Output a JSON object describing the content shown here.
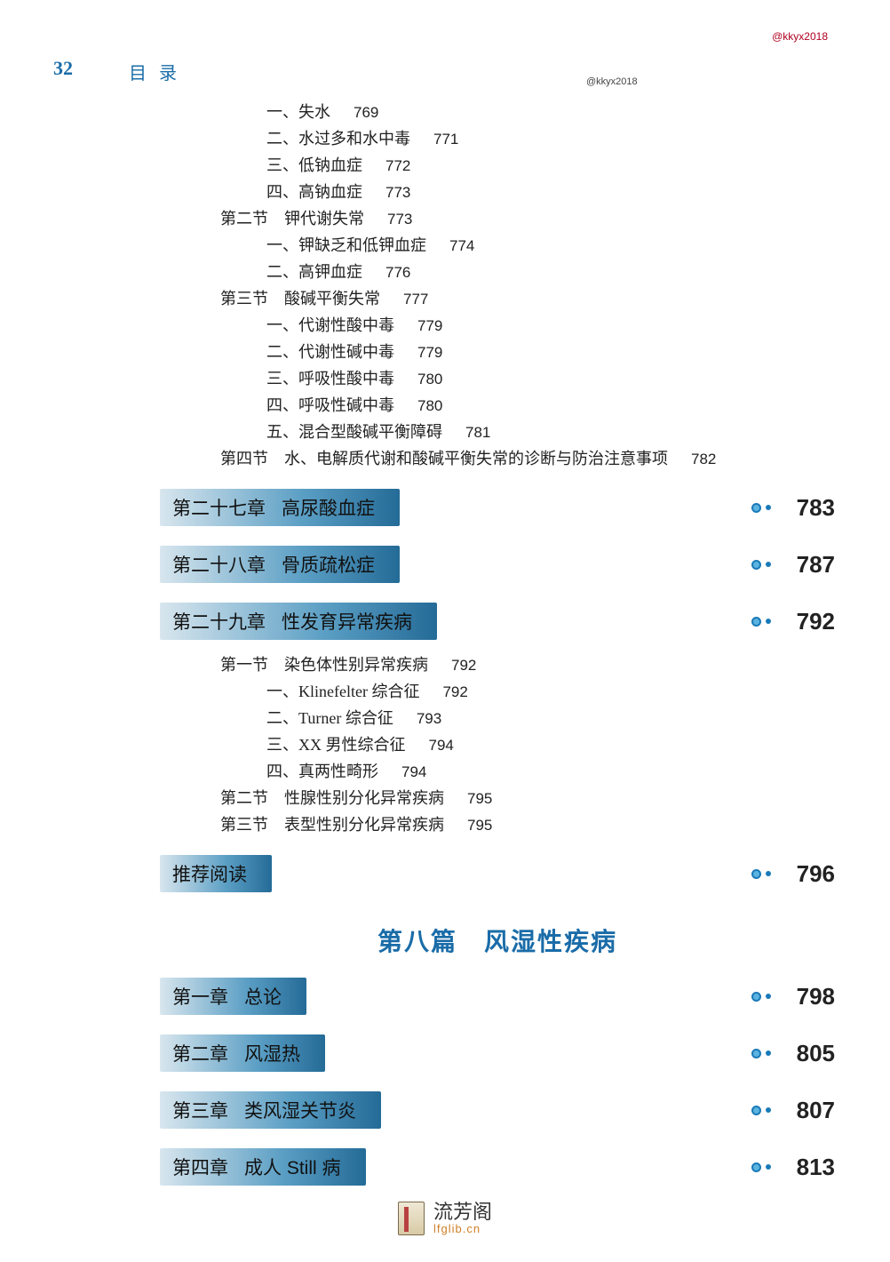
{
  "page_number": "32",
  "header": "目录",
  "watermark_small": "@kkyx2018",
  "watermark_red": "@kkyx2018",
  "footer": {
    "cn": "流芳阁",
    "en": "lfglib.cn"
  },
  "part_title": {
    "prefix": "第八篇",
    "name": "风湿性疾病"
  },
  "style": {
    "accent_color": "#1a6ca8",
    "bar_gradient_start": "#d8e6ee",
    "bar_gradient_mid": "#5a9ec4",
    "bar_gradient_end": "#246b97"
  },
  "lines_top": [
    {
      "type": "sub",
      "label": "一、失水",
      "page": "769"
    },
    {
      "type": "sub",
      "label": "二、水过多和水中毒",
      "page": "771"
    },
    {
      "type": "sub",
      "label": "三、低钠血症",
      "page": "772"
    },
    {
      "type": "sub",
      "label": "四、高钠血症",
      "page": "773"
    },
    {
      "type": "section",
      "sec": "第二节",
      "label": "钾代谢失常",
      "page": "773"
    },
    {
      "type": "sub",
      "label": "一、钾缺乏和低钾血症",
      "page": "774"
    },
    {
      "type": "sub",
      "label": "二、高钾血症",
      "page": "776"
    },
    {
      "type": "section",
      "sec": "第三节",
      "label": "酸碱平衡失常",
      "page": "777"
    },
    {
      "type": "sub",
      "label": "一、代谢性酸中毒",
      "page": "779"
    },
    {
      "type": "sub",
      "label": "二、代谢性碱中毒",
      "page": "779"
    },
    {
      "type": "sub",
      "label": "三、呼吸性酸中毒",
      "page": "780"
    },
    {
      "type": "sub",
      "label": "四、呼吸性碱中毒",
      "page": "780"
    },
    {
      "type": "sub",
      "label": "五、混合型酸碱平衡障碍",
      "page": "781"
    },
    {
      "type": "section",
      "sec": "第四节",
      "label": "水、电解质代谢和酸碱平衡失常的诊断与防治注意事项",
      "page": "782"
    }
  ],
  "chapters_top": [
    {
      "name": "第二十七章",
      "title": "高尿酸血症",
      "page": "783"
    },
    {
      "name": "第二十八章",
      "title": "骨质疏松症",
      "page": "787"
    },
    {
      "name": "第二十九章",
      "title": "性发育异常疾病",
      "page": "792"
    }
  ],
  "lines_mid": [
    {
      "type": "section",
      "sec": "第一节",
      "label": "染色体性别异常疾病",
      "page": "792"
    },
    {
      "type": "sub",
      "label": "一、Klinefelter 综合征",
      "page": "792"
    },
    {
      "type": "sub",
      "label": "二、Turner 综合征",
      "page": "793"
    },
    {
      "type": "sub",
      "label": "三、XX 男性综合征",
      "page": "794"
    },
    {
      "type": "sub",
      "label": "四、真两性畸形",
      "page": "794"
    },
    {
      "type": "section",
      "sec": "第二节",
      "label": "性腺性别分化异常疾病",
      "page": "795"
    },
    {
      "type": "section",
      "sec": "第三节",
      "label": "表型性别分化异常疾病",
      "page": "795"
    }
  ],
  "recommended": {
    "title": "推荐阅读",
    "page": "796"
  },
  "chapters_bottom": [
    {
      "name": "第一章",
      "title": "总论",
      "page": "798"
    },
    {
      "name": "第二章",
      "title": "风湿热",
      "page": "805"
    },
    {
      "name": "第三章",
      "title": "类风湿关节炎",
      "page": "807"
    },
    {
      "name": "第四章",
      "title": "成人 Still 病",
      "page": "813"
    }
  ]
}
